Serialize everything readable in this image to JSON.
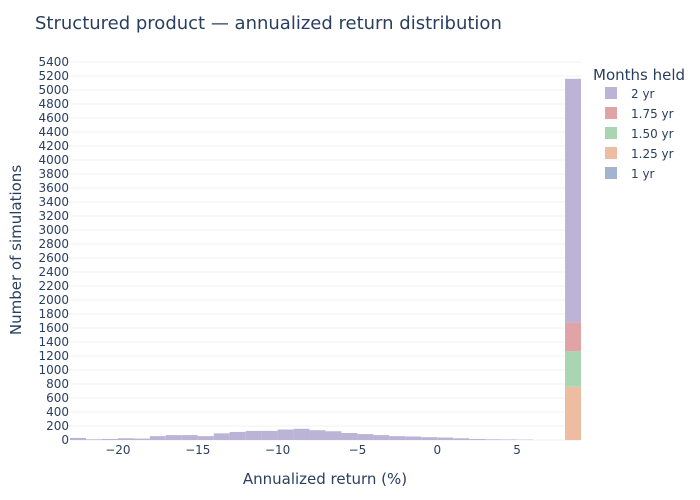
{
  "chart_data": {
    "type": "bar",
    "title": "Structured product — annualized return distribution",
    "xlabel": "Annualized return (%)",
    "ylabel": "Number of simulations",
    "xlim": [
      -23,
      9
    ],
    "ylim": [
      0,
      5400
    ],
    "x_ticks": [
      -20,
      -15,
      -10,
      -5,
      0,
      5
    ],
    "x_tick_labels": [
      "−20",
      "−15",
      "−10",
      "−5",
      "0",
      "5"
    ],
    "y_ticks": [
      0,
      200,
      400,
      600,
      800,
      1000,
      1200,
      1400,
      1600,
      1800,
      2000,
      2200,
      2400,
      2600,
      2800,
      3000,
      3200,
      3400,
      3600,
      3800,
      4000,
      4200,
      4400,
      4600,
      4800,
      5000,
      5200,
      5400
    ],
    "barmode": "stack",
    "bin_width": 1,
    "grid": true,
    "legend": {
      "title": "Months held",
      "placement": "right"
    },
    "series": [
      {
        "name": "1 yr",
        "color": "#a3b4d0",
        "bins": [
          {
            "x0": 8,
            "x1": 9,
            "count": 0
          }
        ]
      },
      {
        "name": "1.25 yr",
        "color": "#ecbda0",
        "bins": [
          {
            "x0": 8,
            "x1": 9,
            "count": 760
          }
        ]
      },
      {
        "name": "1.50 yr",
        "color": "#a9d5b2",
        "bins": [
          {
            "x0": 8,
            "x1": 9,
            "count": 510
          }
        ]
      },
      {
        "name": "1.75 yr",
        "color": "#e1a4a6",
        "bins": [
          {
            "x0": 8,
            "x1": 9,
            "count": 410
          }
        ]
      },
      {
        "name": "2 yr",
        "color": "#bcb4d6",
        "bins": [
          {
            "x0": -23,
            "x1": -22,
            "count": 30
          },
          {
            "x0": -22,
            "x1": -21,
            "count": 10
          },
          {
            "x0": -21,
            "x1": -20,
            "count": 15
          },
          {
            "x0": -20,
            "x1": -19,
            "count": 25
          },
          {
            "x0": -19,
            "x1": -18,
            "count": 20
          },
          {
            "x0": -18,
            "x1": -17,
            "count": 55
          },
          {
            "x0": -17,
            "x1": -16,
            "count": 70
          },
          {
            "x0": -16,
            "x1": -15,
            "count": 70
          },
          {
            "x0": -15,
            "x1": -14,
            "count": 55
          },
          {
            "x0": -14,
            "x1": -13,
            "count": 95
          },
          {
            "x0": -13,
            "x1": -12,
            "count": 115
          },
          {
            "x0": -12,
            "x1": -11,
            "count": 130
          },
          {
            "x0": -11,
            "x1": -10,
            "count": 130
          },
          {
            "x0": -10,
            "x1": -9,
            "count": 150
          },
          {
            "x0": -9,
            "x1": -8,
            "count": 160
          },
          {
            "x0": -8,
            "x1": -7,
            "count": 140
          },
          {
            "x0": -7,
            "x1": -6,
            "count": 125
          },
          {
            "x0": -6,
            "x1": -5,
            "count": 100
          },
          {
            "x0": -5,
            "x1": -4,
            "count": 85
          },
          {
            "x0": -4,
            "x1": -3,
            "count": 70
          },
          {
            "x0": -3,
            "x1": -2,
            "count": 55
          },
          {
            "x0": -2,
            "x1": -1,
            "count": 50
          },
          {
            "x0": -1,
            "x1": 0,
            "count": 40
          },
          {
            "x0": 0,
            "x1": 1,
            "count": 35
          },
          {
            "x0": 1,
            "x1": 2,
            "count": 25
          },
          {
            "x0": 2,
            "x1": 3,
            "count": 15
          },
          {
            "x0": 3,
            "x1": 4,
            "count": 10
          },
          {
            "x0": 4,
            "x1": 5,
            "count": 8
          },
          {
            "x0": 5,
            "x1": 6,
            "count": 5
          },
          {
            "x0": 6,
            "x1": 7,
            "count": 0
          },
          {
            "x0": 7,
            "x1": 8,
            "count": 0
          },
          {
            "x0": 8,
            "x1": 9,
            "count": 3480
          }
        ]
      }
    ],
    "legend_order": [
      "2 yr",
      "1.75 yr",
      "1.50 yr",
      "1.25 yr",
      "1 yr"
    ]
  }
}
